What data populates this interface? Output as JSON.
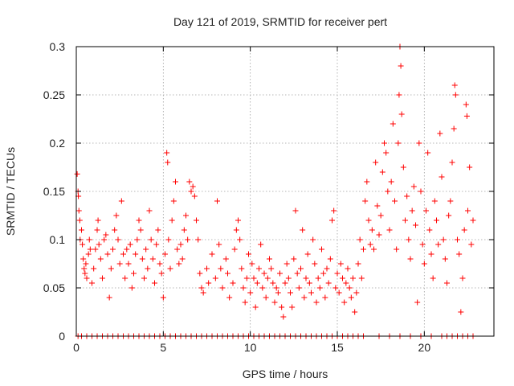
{
  "chart_data": {
    "type": "scatter",
    "title": "Day 121 of 2019, SRMTID for receiver pert",
    "xlabel": "GPS time / hours",
    "ylabel": "SRMTID / TECUs",
    "xlim": [
      0,
      24
    ],
    "ylim": [
      0,
      0.3
    ],
    "x_ticks": [
      0,
      5,
      10,
      15,
      20
    ],
    "x_tick_labels": [
      "0",
      "5",
      "10",
      "15",
      "20"
    ],
    "y_ticks": [
      0,
      0.05,
      0.1,
      0.15,
      0.2,
      0.25,
      0.3
    ],
    "y_tick_labels": [
      "0",
      "0.05",
      "0.1",
      "0.15",
      "0.2",
      "0.25",
      "0.3"
    ],
    "grid": true,
    "marker": "+",
    "series_color": "#ff0000",
    "series": [
      {
        "name": "SRMTID",
        "points": [
          [
            0.05,
            0.168
          ],
          [
            0.1,
            0.15
          ],
          [
            0.12,
            0.145
          ],
          [
            0.15,
            0.13
          ],
          [
            0.2,
            0.12
          ],
          [
            0.22,
            0.1
          ],
          [
            0.3,
            0.11
          ],
          [
            0.35,
            0.095
          ],
          [
            0.4,
            0.08
          ],
          [
            0.45,
            0.07
          ],
          [
            0.5,
            0.065
          ],
          [
            0.55,
            0.075
          ],
          [
            0.6,
            0.06
          ],
          [
            0.7,
            0.085
          ],
          [
            0.75,
            0.1
          ],
          [
            0.8,
            0.09
          ],
          [
            0.9,
            0.055
          ],
          [
            1.0,
            0.07
          ],
          [
            1.1,
            0.09
          ],
          [
            1.2,
            0.11
          ],
          [
            1.25,
            0.12
          ],
          [
            1.3,
            0.095
          ],
          [
            1.4,
            0.08
          ],
          [
            1.5,
            0.06
          ],
          [
            1.6,
            0.1
          ],
          [
            1.7,
            0.105
          ],
          [
            1.8,
            0.085
          ],
          [
            1.9,
            0.04
          ],
          [
            2.0,
            0.07
          ],
          [
            2.1,
            0.09
          ],
          [
            2.2,
            0.11
          ],
          [
            2.3,
            0.125
          ],
          [
            2.4,
            0.1
          ],
          [
            2.5,
            0.075
          ],
          [
            2.6,
            0.14
          ],
          [
            2.7,
            0.085
          ],
          [
            2.8,
            0.06
          ],
          [
            2.9,
            0.09
          ],
          [
            3.0,
            0.075
          ],
          [
            3.1,
            0.095
          ],
          [
            3.2,
            0.05
          ],
          [
            3.3,
            0.065
          ],
          [
            3.4,
            0.085
          ],
          [
            3.5,
            0.1
          ],
          [
            3.6,
            0.12
          ],
          [
            3.7,
            0.11
          ],
          [
            3.8,
            0.08
          ],
          [
            3.9,
            0.06
          ],
          [
            4.0,
            0.09
          ],
          [
            4.1,
            0.07
          ],
          [
            4.2,
            0.13
          ],
          [
            4.3,
            0.1
          ],
          [
            4.4,
            0.08
          ],
          [
            4.5,
            0.055
          ],
          [
            4.6,
            0.095
          ],
          [
            4.7,
            0.11
          ],
          [
            4.8,
            0.075
          ],
          [
            4.9,
            0.065
          ],
          [
            5.0,
            0.04
          ],
          [
            5.1,
            0.085
          ],
          [
            5.2,
            0.19
          ],
          [
            5.25,
            0.18
          ],
          [
            5.3,
            0.1
          ],
          [
            5.4,
            0.07
          ],
          [
            5.5,
            0.12
          ],
          [
            5.6,
            0.14
          ],
          [
            5.7,
            0.16
          ],
          [
            5.8,
            0.09
          ],
          [
            5.9,
            0.075
          ],
          [
            6.0,
            0.095
          ],
          [
            6.1,
            0.08
          ],
          [
            6.2,
            0.11
          ],
          [
            6.3,
            0.125
          ],
          [
            6.4,
            0.1
          ],
          [
            6.5,
            0.16
          ],
          [
            6.6,
            0.15
          ],
          [
            6.7,
            0.155
          ],
          [
            6.8,
            0.145
          ],
          [
            6.9,
            0.12
          ],
          [
            7.0,
            0.1
          ],
          [
            7.1,
            0.065
          ],
          [
            7.2,
            0.05
          ],
          [
            7.3,
            0.045
          ],
          [
            7.5,
            0.07
          ],
          [
            7.6,
            0.055
          ],
          [
            7.8,
            0.085
          ],
          [
            8.0,
            0.06
          ],
          [
            8.1,
            0.14
          ],
          [
            8.2,
            0.095
          ],
          [
            8.3,
            0.07
          ],
          [
            8.4,
            0.05
          ],
          [
            8.6,
            0.08
          ],
          [
            8.7,
            0.065
          ],
          [
            8.8,
            0.04
          ],
          [
            9.0,
            0.055
          ],
          [
            9.1,
            0.09
          ],
          [
            9.2,
            0.11
          ],
          [
            9.3,
            0.12
          ],
          [
            9.4,
            0.1
          ],
          [
            9.5,
            0.07
          ],
          [
            9.6,
            0.05
          ],
          [
            9.7,
            0.035
          ],
          [
            9.8,
            0.06
          ],
          [
            9.9,
            0.085
          ],
          [
            10.0,
            0.045
          ],
          [
            10.1,
            0.075
          ],
          [
            10.2,
            0.06
          ],
          [
            10.3,
            0.03
          ],
          [
            10.4,
            0.055
          ],
          [
            10.5,
            0.07
          ],
          [
            10.6,
            0.095
          ],
          [
            10.7,
            0.05
          ],
          [
            10.8,
            0.065
          ],
          [
            10.9,
            0.04
          ],
          [
            11.0,
            0.06
          ],
          [
            11.1,
            0.08
          ],
          [
            11.2,
            0.07
          ],
          [
            11.3,
            0.055
          ],
          [
            11.4,
            0.035
          ],
          [
            11.5,
            0.05
          ],
          [
            11.6,
            0.045
          ],
          [
            11.7,
            0.065
          ],
          [
            11.8,
            0.03
          ],
          [
            11.9,
            0.02
          ],
          [
            12.0,
            0.055
          ],
          [
            12.1,
            0.075
          ],
          [
            12.2,
            0.06
          ],
          [
            12.3,
            0.045
          ],
          [
            12.4,
            0.03
          ],
          [
            12.5,
            0.08
          ],
          [
            12.6,
            0.13
          ],
          [
            12.7,
            0.065
          ],
          [
            12.8,
            0.05
          ],
          [
            12.9,
            0.07
          ],
          [
            13.0,
            0.11
          ],
          [
            13.1,
            0.04
          ],
          [
            13.2,
            0.06
          ],
          [
            13.3,
            0.085
          ],
          [
            13.4,
            0.055
          ],
          [
            13.5,
            0.045
          ],
          [
            13.6,
            0.1
          ],
          [
            13.7,
            0.075
          ],
          [
            13.8,
            0.035
          ],
          [
            13.9,
            0.06
          ],
          [
            14.0,
            0.05
          ],
          [
            14.1,
            0.09
          ],
          [
            14.2,
            0.065
          ],
          [
            14.3,
            0.04
          ],
          [
            14.4,
            0.07
          ],
          [
            14.5,
            0.055
          ],
          [
            14.6,
            0.08
          ],
          [
            14.7,
            0.12
          ],
          [
            14.8,
            0.13
          ],
          [
            14.9,
            0.05
          ],
          [
            15.0,
            0.065
          ],
          [
            15.1,
            0.045
          ],
          [
            15.2,
            0.075
          ],
          [
            15.3,
            0.06
          ],
          [
            15.4,
            0.035
          ],
          [
            15.5,
            0.055
          ],
          [
            15.6,
            0.07
          ],
          [
            15.7,
            0.05
          ],
          [
            15.8,
            0.04
          ],
          [
            15.9,
            0.06
          ],
          [
            16.0,
            0.025
          ],
          [
            16.1,
            0.045
          ],
          [
            16.2,
            0.075
          ],
          [
            16.3,
            0.1
          ],
          [
            16.4,
            0.06
          ],
          [
            16.5,
            0.09
          ],
          [
            16.6,
            0.14
          ],
          [
            16.7,
            0.16
          ],
          [
            16.8,
            0.12
          ],
          [
            16.9,
            0.095
          ],
          [
            17.0,
            0.11
          ],
          [
            17.1,
            0.09
          ],
          [
            17.2,
            0.18
          ],
          [
            17.3,
            0.135
          ],
          [
            17.4,
            0.105
          ],
          [
            17.5,
            0.125
          ],
          [
            17.6,
            0.17
          ],
          [
            17.7,
            0.2
          ],
          [
            17.8,
            0.19
          ],
          [
            17.9,
            0.15
          ],
          [
            18.0,
            0.11
          ],
          [
            18.1,
            0.16
          ],
          [
            18.2,
            0.22
          ],
          [
            18.3,
            0.14
          ],
          [
            18.4,
            0.09
          ],
          [
            18.5,
            0.2
          ],
          [
            18.55,
            0.25
          ],
          [
            18.6,
            0.3
          ],
          [
            18.65,
            0.28
          ],
          [
            18.7,
            0.23
          ],
          [
            18.8,
            0.175
          ],
          [
            18.9,
            0.12
          ],
          [
            19.0,
            0.145
          ],
          [
            19.1,
            0.1
          ],
          [
            19.2,
            0.08
          ],
          [
            19.3,
            0.13
          ],
          [
            19.4,
            0.155
          ],
          [
            19.5,
            0.115
          ],
          [
            19.6,
            0.035
          ],
          [
            19.7,
            0.2
          ],
          [
            19.8,
            0.15
          ],
          [
            19.9,
            0.095
          ],
          [
            20.0,
            0.075
          ],
          [
            20.1,
            0.13
          ],
          [
            20.2,
            0.19
          ],
          [
            20.3,
            0.11
          ],
          [
            20.4,
            0.085
          ],
          [
            20.5,
            0.06
          ],
          [
            20.6,
            0.14
          ],
          [
            20.7,
            0.12
          ],
          [
            20.8,
            0.095
          ],
          [
            20.9,
            0.21
          ],
          [
            21.0,
            0.165
          ],
          [
            21.1,
            0.1
          ],
          [
            21.2,
            0.08
          ],
          [
            21.3,
            0.055
          ],
          [
            21.4,
            0.125
          ],
          [
            21.5,
            0.14
          ],
          [
            21.6,
            0.18
          ],
          [
            21.7,
            0.215
          ],
          [
            21.75,
            0.26
          ],
          [
            21.8,
            0.25
          ],
          [
            21.9,
            0.1
          ],
          [
            22.0,
            0.085
          ],
          [
            22.1,
            0.025
          ],
          [
            22.2,
            0.06
          ],
          [
            22.3,
            0.11
          ],
          [
            22.4,
            0.24
          ],
          [
            22.45,
            0.228
          ],
          [
            22.5,
            0.13
          ],
          [
            22.6,
            0.175
          ],
          [
            22.7,
            0.095
          ],
          [
            22.8,
            0.12
          ],
          [
            0.1,
            0
          ],
          [
            0.3,
            0
          ],
          [
            0.6,
            0
          ],
          [
            0.9,
            0
          ],
          [
            1.2,
            0
          ],
          [
            1.5,
            0
          ],
          [
            1.8,
            0
          ],
          [
            2.1,
            0
          ],
          [
            2.4,
            0
          ],
          [
            2.7,
            0
          ],
          [
            3.0,
            0
          ],
          [
            3.3,
            0
          ],
          [
            3.6,
            0
          ],
          [
            3.9,
            0
          ],
          [
            4.2,
            0
          ],
          [
            4.5,
            0
          ],
          [
            4.8,
            0
          ],
          [
            5.1,
            0
          ],
          [
            5.4,
            0
          ],
          [
            5.7,
            0
          ],
          [
            6.0,
            0
          ],
          [
            6.3,
            0
          ],
          [
            6.6,
            0
          ],
          [
            6.9,
            0
          ],
          [
            7.2,
            0
          ],
          [
            7.5,
            0
          ],
          [
            7.8,
            0
          ],
          [
            8.1,
            0
          ],
          [
            8.4,
            0
          ],
          [
            8.7,
            0
          ],
          [
            9.0,
            0
          ],
          [
            9.3,
            0
          ],
          [
            9.6,
            0
          ],
          [
            9.9,
            0
          ],
          [
            10.2,
            0
          ],
          [
            10.5,
            0
          ],
          [
            10.8,
            0
          ],
          [
            11.1,
            0
          ],
          [
            11.4,
            0
          ],
          [
            11.7,
            0
          ],
          [
            12.0,
            0
          ],
          [
            12.3,
            0
          ],
          [
            12.6,
            0
          ],
          [
            12.9,
            0
          ],
          [
            13.2,
            0
          ],
          [
            13.5,
            0
          ],
          [
            13.8,
            0
          ],
          [
            14.1,
            0
          ],
          [
            14.4,
            0
          ],
          [
            14.7,
            0
          ],
          [
            15.0,
            0
          ],
          [
            15.3,
            0
          ],
          [
            15.6,
            0
          ],
          [
            15.9,
            0
          ],
          [
            16.2,
            0
          ],
          [
            16.5,
            0
          ],
          [
            17.4,
            0
          ],
          [
            18.0,
            0
          ],
          [
            18.6,
            0
          ],
          [
            19.2,
            0
          ],
          [
            19.8,
            0
          ],
          [
            20.4,
            0
          ],
          [
            21.0,
            0
          ],
          [
            21.3,
            0
          ],
          [
            21.6,
            0
          ],
          [
            21.9,
            0
          ],
          [
            22.2,
            0
          ],
          [
            22.5,
            0
          ],
          [
            22.8,
            0
          ]
        ]
      }
    ]
  }
}
